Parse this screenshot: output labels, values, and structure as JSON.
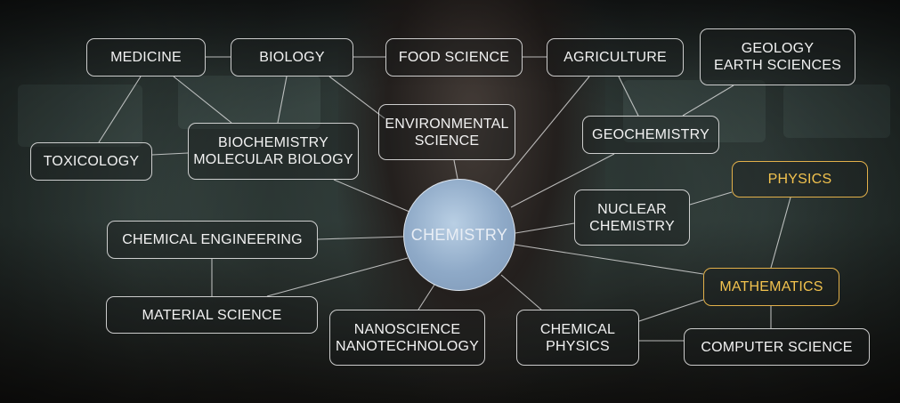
{
  "hub": {
    "label": "CHEMISTRY"
  },
  "nodes": {
    "medicine": {
      "lines": [
        "MEDICINE"
      ]
    },
    "biology": {
      "lines": [
        "BIOLOGY"
      ]
    },
    "food_science": {
      "lines": [
        "FOOD SCIENCE"
      ]
    },
    "agriculture": {
      "lines": [
        "AGRICULTURE"
      ]
    },
    "geology": {
      "lines": [
        "GEOLOGY",
        "EARTH SCIENCES"
      ]
    },
    "toxicology": {
      "lines": [
        "TOXICOLOGY"
      ]
    },
    "biochemistry": {
      "lines": [
        "BIOCHEMISTRY",
        "MOLECULAR BIOLOGY"
      ]
    },
    "environmental": {
      "lines": [
        "ENVIRONMENTAL",
        "SCIENCE"
      ]
    },
    "geochemistry": {
      "lines": [
        "GEOCHEMISTRY"
      ]
    },
    "physics": {
      "lines": [
        "PHYSICS"
      ]
    },
    "nuclear": {
      "lines": [
        "NUCLEAR",
        "CHEMISTRY"
      ]
    },
    "chemical_engineering": {
      "lines": [
        "CHEMICAL ENGINEERING"
      ]
    },
    "material_science": {
      "lines": [
        "MATERIAL SCIENCE"
      ]
    },
    "nanoscience": {
      "lines": [
        "NANOSCIENCE",
        "NANOTECHNOLOGY"
      ]
    },
    "chemical_physics": {
      "lines": [
        "CHEMICAL",
        "PHYSICS"
      ]
    },
    "mathematics": {
      "lines": [
        "MATHEMATICS"
      ]
    },
    "computer_science": {
      "lines": [
        "COMPUTER SCIENCE"
      ]
    }
  },
  "colors": {
    "line": "#ebebeb",
    "highlight": "#f2c24e",
    "hub": "#8ea9c7"
  }
}
